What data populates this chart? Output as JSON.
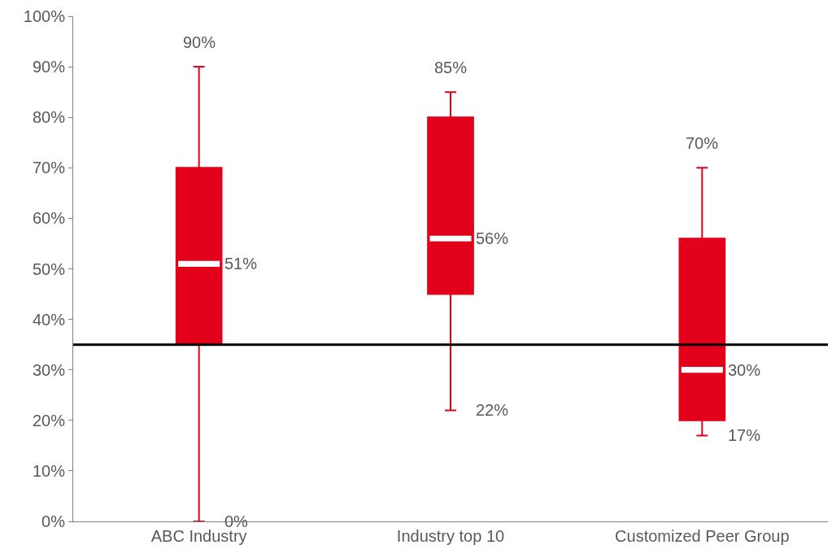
{
  "chart_data": {
    "type": "box",
    "categories": [
      "ABC Industry",
      "Industry top 10",
      "Customized Peer Group"
    ],
    "boxes": [
      {
        "low": 0,
        "q1": 35,
        "median": 51,
        "q3": 70,
        "high": 90
      },
      {
        "low": 22,
        "q1": 45,
        "median": 56,
        "q3": 80,
        "high": 85
      },
      {
        "low": 17,
        "q1": 20,
        "median": 30,
        "q3": 56,
        "high": 70
      }
    ],
    "color": "#e2001a",
    "ylim": [
      0,
      100
    ],
    "yticks": [
      {
        "value": 0,
        "label": "0%"
      },
      {
        "value": 10,
        "label": "10%"
      },
      {
        "value": 20,
        "label": "20%"
      },
      {
        "value": 30,
        "label": "30%"
      },
      {
        "value": 40,
        "label": "40%"
      },
      {
        "value": 50,
        "label": "50%"
      },
      {
        "value": 60,
        "label": "60%"
      },
      {
        "value": 70,
        "label": "70%"
      },
      {
        "value": 80,
        "label": "80%"
      },
      {
        "value": 90,
        "label": "90%"
      },
      {
        "value": 100,
        "label": "100%"
      }
    ],
    "ref_lines": [
      {
        "axis": "y",
        "value": 35,
        "color": "#000000"
      }
    ],
    "annotations": [
      {
        "text": "90%",
        "x": "ABC Industry",
        "y": 90
      },
      {
        "text": "51%",
        "x": "ABC Industry",
        "y": 51
      },
      {
        "text": "0%",
        "x": "ABC Industry",
        "y": 0
      },
      {
        "text": "85%",
        "x": "Industry top 10",
        "y": 85
      },
      {
        "text": "56%",
        "x": "Industry top 10",
        "y": 56
      },
      {
        "text": "22%",
        "x": "Industry top 10",
        "y": 22
      },
      {
        "text": "70%",
        "x": "Customized Peer Group",
        "y": 70
      },
      {
        "text": "30%",
        "x": "Customized Peer Group",
        "y": 30
      },
      {
        "text": "17%",
        "x": "Customized Peer Group",
        "y": 17
      }
    ]
  }
}
